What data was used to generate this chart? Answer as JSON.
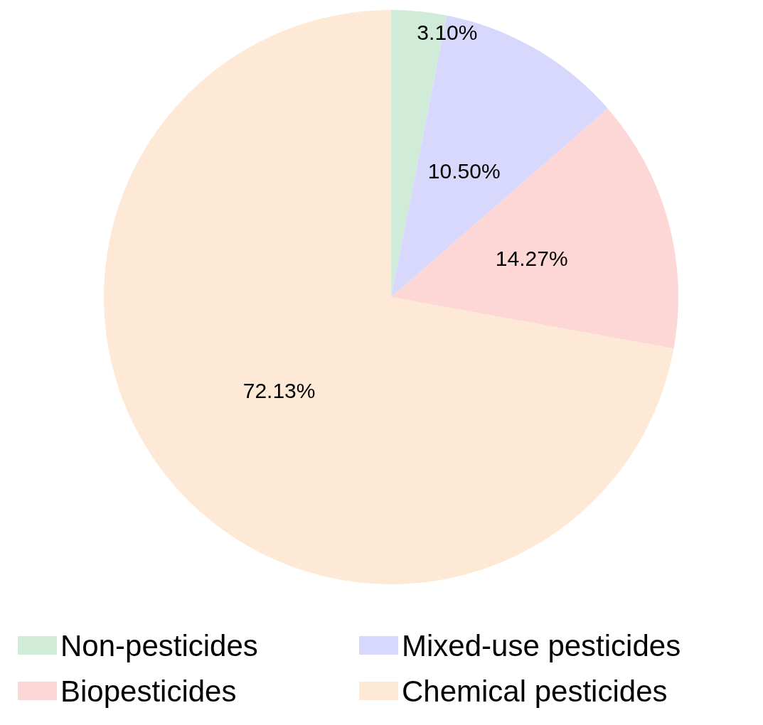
{
  "chart_data": {
    "type": "pie",
    "categories": [
      "Non-pesticides",
      "Mixed-use pesticides",
      "Biopesticides",
      "Chemical pesticides"
    ],
    "values": [
      3.1,
      10.5,
      14.27,
      72.13
    ],
    "colors": [
      "#d0ecd8",
      "#d8d8fc",
      "#fdd6d6",
      "#fde9d6"
    ],
    "value_labels": [
      "3.10%",
      "10.50%",
      "14.27%",
      "72.13%"
    ],
    "legend": "bottom"
  }
}
